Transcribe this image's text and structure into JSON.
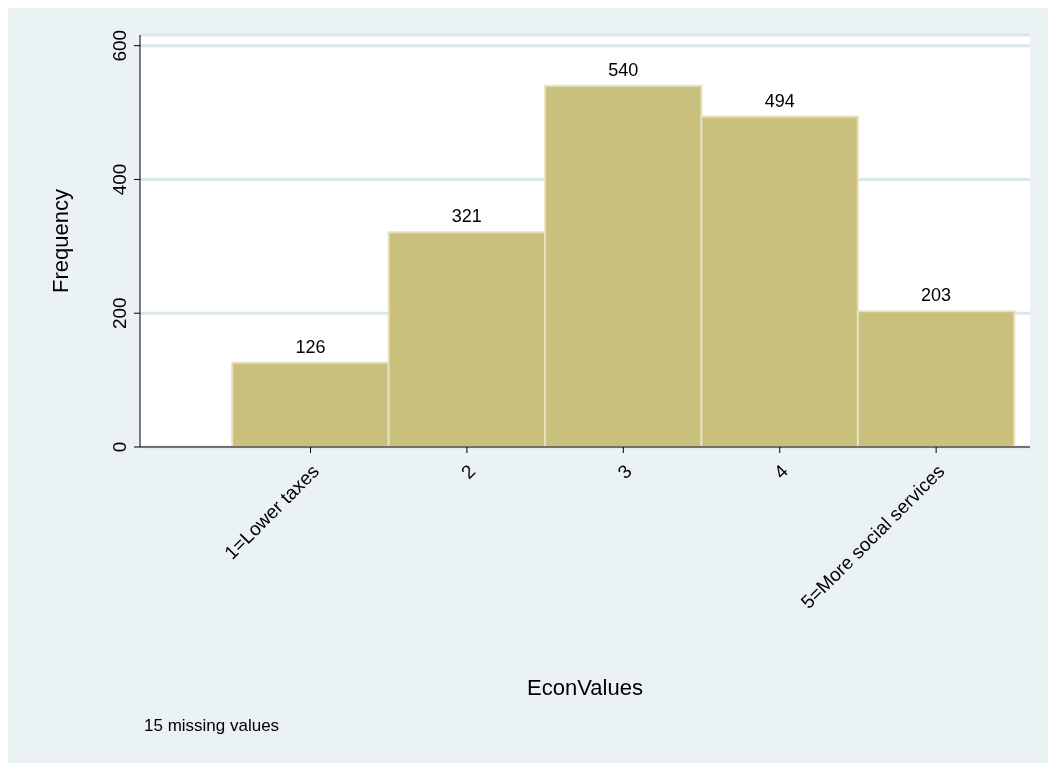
{
  "chart_data": {
    "type": "histogram",
    "xlabel": "EconValues",
    "ylabel": "Frequency",
    "bins": [
      0.5,
      1.5,
      2.5,
      3.5,
      4.5,
      5.5
    ],
    "values": [
      126,
      321,
      540,
      494,
      203
    ],
    "color": "#c9c07e",
    "xlim": [
      -0.09,
      5.6
    ],
    "xticks": [
      {
        "value": 1,
        "label": "1=Lower taxes"
      },
      {
        "value": 2,
        "label": "2"
      },
      {
        "value": 3,
        "label": "3"
      },
      {
        "value": 4,
        "label": "4"
      },
      {
        "value": 5,
        "label": "5=More social services"
      }
    ],
    "ylim": [
      0,
      616
    ],
    "yticks": [
      0,
      200,
      400,
      600
    ],
    "grid": "y",
    "data_labels": true,
    "annotations": [
      "15 missing values"
    ]
  }
}
